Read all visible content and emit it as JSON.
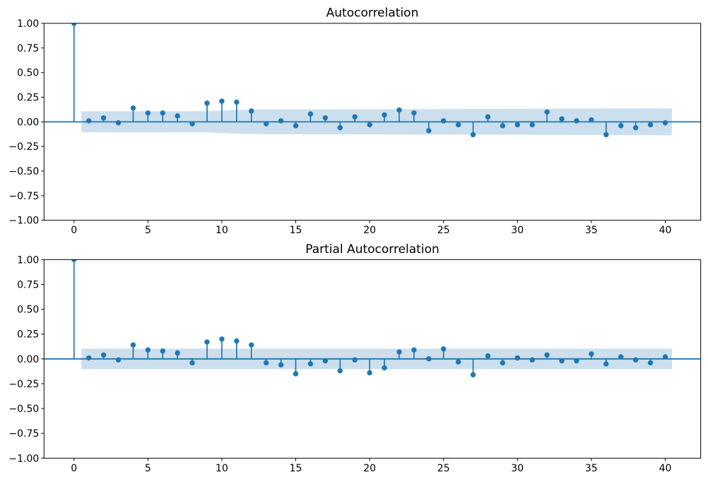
{
  "figure": {
    "background": "#ffffff",
    "accent_color": "#1f77b4",
    "band_color": "#cbdfee",
    "spine_color": "#000000",
    "text_color": "#000000"
  },
  "chart_data": [
    {
      "type": "stem",
      "title": "Autocorrelation",
      "xlabel": "",
      "ylabel": "",
      "xlim": [
        -2.03,
        42.4
      ],
      "ylim": [
        -1.0,
        1.0
      ],
      "grid": false,
      "legend": null,
      "xticks": [
        0,
        5,
        10,
        15,
        20,
        25,
        30,
        35,
        40
      ],
      "xtick_labels": [
        "0",
        "5",
        "10",
        "15",
        "20",
        "25",
        "30",
        "35",
        "40"
      ],
      "yticks": [
        1.0,
        0.75,
        0.5,
        0.25,
        0.0,
        -0.25,
        -0.5,
        -0.75,
        -1.0
      ],
      "ytick_labels": [
        "1.00",
        "0.75",
        "0.50",
        "0.25",
        "0.00",
        "−0.25",
        "−0.50",
        "−0.75",
        "−1.00"
      ],
      "lags": [
        0,
        1,
        2,
        3,
        4,
        5,
        6,
        7,
        8,
        9,
        10,
        11,
        12,
        13,
        14,
        15,
        16,
        17,
        18,
        19,
        20,
        21,
        22,
        23,
        24,
        25,
        26,
        27,
        28,
        29,
        30,
        31,
        32,
        33,
        34,
        35,
        36,
        37,
        38,
        39,
        40
      ],
      "values": [
        1.0,
        0.01,
        0.04,
        -0.01,
        0.14,
        0.09,
        0.09,
        0.06,
        -0.02,
        0.19,
        0.21,
        0.2,
        0.11,
        -0.02,
        0.01,
        -0.04,
        0.08,
        0.04,
        -0.06,
        0.05,
        -0.03,
        0.07,
        0.12,
        0.09,
        -0.09,
        0.01,
        -0.03,
        -0.13,
        0.05,
        -0.04,
        -0.03,
        -0.03,
        0.1,
        0.03,
        0.01,
        0.02,
        -0.13,
        -0.04,
        -0.06,
        -0.03,
        -0.01
      ],
      "confidence_band": {
        "symmetric": true,
        "shape": "widening",
        "points": [
          [
            0.5,
            0.106
          ],
          [
            9,
            0.108
          ],
          [
            10,
            0.113
          ],
          [
            11,
            0.119
          ],
          [
            12,
            0.123
          ],
          [
            13,
            0.126
          ],
          [
            20,
            0.128
          ],
          [
            28,
            0.131
          ],
          [
            36,
            0.134
          ],
          [
            40.45,
            0.137
          ]
        ]
      }
    },
    {
      "type": "stem",
      "title": "Partial Autocorrelation",
      "xlabel": "",
      "ylabel": "",
      "xlim": [
        -2.03,
        42.4
      ],
      "ylim": [
        -1.0,
        1.0
      ],
      "grid": false,
      "legend": null,
      "xticks": [
        0,
        5,
        10,
        15,
        20,
        25,
        30,
        35,
        40
      ],
      "xtick_labels": [
        "0",
        "5",
        "10",
        "15",
        "20",
        "25",
        "30",
        "35",
        "40"
      ],
      "yticks": [
        1.0,
        0.75,
        0.5,
        0.25,
        0.0,
        -0.25,
        -0.5,
        -0.75,
        -1.0
      ],
      "ytick_labels": [
        "1.00",
        "0.75",
        "0.50",
        "0.25",
        "0.00",
        "−0.25",
        "−0.50",
        "−0.75",
        "−1.00"
      ],
      "lags": [
        0,
        1,
        2,
        3,
        4,
        5,
        6,
        7,
        8,
        9,
        10,
        11,
        12,
        13,
        14,
        15,
        16,
        17,
        18,
        19,
        20,
        21,
        22,
        23,
        24,
        25,
        26,
        27,
        28,
        29,
        30,
        31,
        32,
        33,
        34,
        35,
        36,
        37,
        38,
        39,
        40
      ],
      "values": [
        1.0,
        0.01,
        0.04,
        -0.01,
        0.14,
        0.09,
        0.08,
        0.06,
        -0.04,
        0.17,
        0.2,
        0.18,
        0.14,
        -0.04,
        -0.06,
        -0.15,
        -0.05,
        -0.02,
        -0.12,
        -0.01,
        -0.14,
        -0.09,
        0.07,
        0.09,
        0.0,
        0.1,
        -0.03,
        -0.16,
        0.03,
        -0.04,
        0.01,
        -0.01,
        0.04,
        -0.02,
        -0.02,
        0.05,
        -0.05,
        0.02,
        -0.01,
        -0.04,
        0.02
      ],
      "confidence_band": {
        "symmetric": true,
        "shape": "constant",
        "points": [
          [
            0.5,
            0.103
          ],
          [
            40.45,
            0.103
          ]
        ]
      }
    }
  ]
}
